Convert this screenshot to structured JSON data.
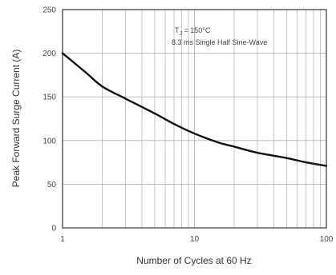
{
  "chart_data": {
    "type": "line",
    "title": "",
    "xlabel": "Number of Cycles at 60 Hz",
    "ylabel": "Peak Forward Surge Current (A)",
    "xscale": "log",
    "xlim": [
      1,
      100
    ],
    "ylim": [
      0,
      250
    ],
    "x_ticks": [
      "1",
      "10",
      "100"
    ],
    "y_ticks": [
      "0",
      "50",
      "100",
      "150",
      "200",
      "250"
    ],
    "grid": true,
    "annotation": {
      "line1": "T",
      "line1_sub": "J",
      "line1_rest": " = 150°C",
      "line2": "8.3 ms Single Half Sine-Wave"
    },
    "series": [
      {
        "x": [
          1,
          1.5,
          2,
          3,
          5,
          7,
          10,
          15,
          20,
          30,
          50,
          70,
          100
        ],
        "values": [
          200,
          178,
          162,
          148,
          131,
          119,
          108,
          98,
          93,
          86,
          80,
          75,
          71
        ]
      }
    ],
    "colors": {
      "line": "#111111",
      "grid": "#b5b5b5",
      "frame": "#333333"
    }
  }
}
